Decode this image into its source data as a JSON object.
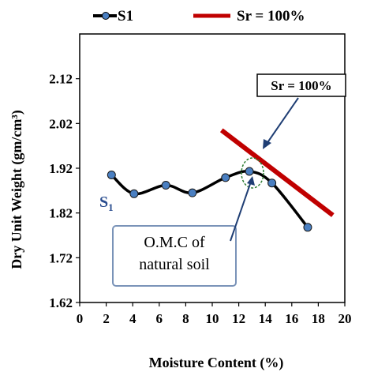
{
  "chart_data": {
    "type": "line",
    "xlabel": "Moisture Content (%)",
    "ylabel": "Dry Unit Weight (gm/cm³)",
    "xlim": [
      0,
      20
    ],
    "ylim": [
      1.62,
      2.12
    ],
    "x_ticks": [
      "0",
      "2",
      "4",
      "6",
      "8",
      "10",
      "12",
      "14",
      "16",
      "18",
      "20"
    ],
    "y_ticks": [
      "1.62",
      "1.72",
      "1.82",
      "1.92",
      "2.02",
      "2.12"
    ],
    "grid": false,
    "legend_position": "top",
    "series": [
      {
        "name": "S1",
        "style": "line-with-markers",
        "color": "#000000",
        "marker_color": "#4a7fc1",
        "x": [
          2.4,
          4.1,
          6.5,
          8.5,
          11.0,
          12.8,
          14.5,
          17.2
        ],
        "y": [
          1.905,
          1.863,
          1.882,
          1.865,
          1.899,
          1.913,
          1.887,
          1.788
        ]
      },
      {
        "name": "Sr = 100%",
        "style": "line",
        "color": "#c00000",
        "x": [
          10.7,
          19.1
        ],
        "y": [
          2.005,
          1.815
        ]
      }
    ],
    "series_label": {
      "text": "S",
      "subscript": "1"
    },
    "annotations": [
      {
        "id": "sr-callout",
        "text": "Sr = 100%"
      },
      {
        "id": "omc-callout",
        "lines": [
          "O.M.C of",
          "natural soil"
        ]
      }
    ]
  }
}
